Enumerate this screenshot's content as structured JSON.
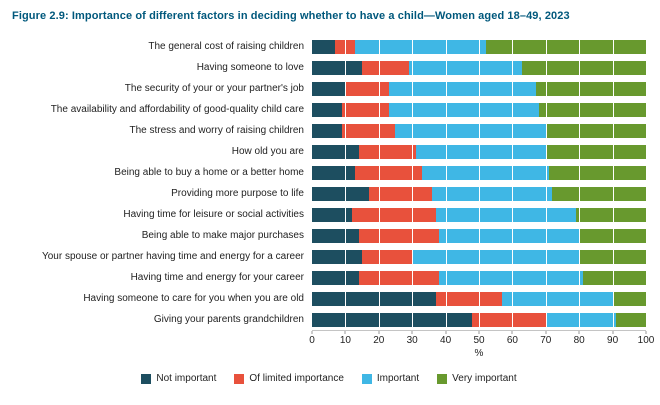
{
  "figure": {
    "title": "Figure 2.9: Importance of different factors in deciding whether to have a child—Women aged 18–49, 2023",
    "title_color": "#00587c"
  },
  "chart_data": {
    "type": "bar",
    "orientation": "horizontal",
    "stacked": true,
    "title": "Figure 2.9: Importance of different factors in deciding whether to have a child—Women aged 18–49, 2023",
    "xlabel": "%",
    "xlim": [
      0,
      100
    ],
    "x_ticks": [
      0,
      10,
      20,
      30,
      40,
      50,
      60,
      70,
      80,
      90,
      100
    ],
    "grid": "white vertical gridlines every 10%",
    "legend_position": "bottom",
    "categories": [
      "The general cost of raising children",
      "Having someone to love",
      "The security of your or your partner's job",
      "The availability and affordability of good-quality child care",
      "The stress and worry of raising children",
      "How old you are",
      "Being able to buy a home or a better home",
      "Providing more purpose to life",
      "Having time for leisure or social activities",
      "Being able to make major purchases",
      "Your spouse or partner having time and energy for a career",
      "Having time and energy for your career",
      "Having someone to care for you when you are old",
      "Giving your parents grandchildren"
    ],
    "series": [
      {
        "name": "Not important",
        "color": "#1d4e60",
        "values": [
          7,
          15,
          10,
          9,
          9,
          14,
          13,
          17,
          12,
          14,
          15,
          14,
          37,
          48
        ]
      },
      {
        "name": "Of limited importance",
        "color": "#e8513c",
        "values": [
          6,
          14,
          13,
          14,
          16,
          17,
          20,
          19,
          25,
          24,
          15,
          24,
          20,
          22
        ]
      },
      {
        "name": "Important",
        "color": "#3fb7e5",
        "values": [
          39,
          34,
          44,
          45,
          45,
          39,
          38,
          36,
          42,
          42,
          50,
          43,
          33,
          21
        ]
      },
      {
        "name": "Very important",
        "color": "#68992e",
        "values": [
          48,
          37,
          33,
          32,
          30,
          30,
          29,
          28,
          21,
          20,
          20,
          19,
          10,
          9
        ]
      }
    ]
  }
}
